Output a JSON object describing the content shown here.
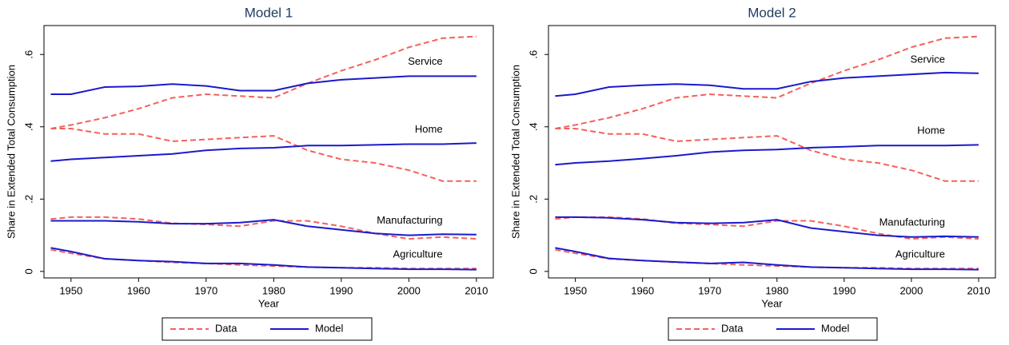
{
  "chart_data": [
    {
      "type": "line",
      "title": "Model 1",
      "xlabel": "Year",
      "ylabel": "Share in Extended Total Consumption",
      "x": [
        1947,
        1950,
        1955,
        1960,
        1965,
        1970,
        1975,
        1980,
        1985,
        1990,
        1995,
        2000,
        2005,
        2010
      ],
      "xlim": [
        1946,
        2012.5
      ],
      "xticks": [
        1950,
        1960,
        1970,
        1980,
        1990,
        2000,
        2010
      ],
      "ylim": [
        -0.018,
        0.68
      ],
      "yticks": [
        0,
        {
          "value": 0.2,
          "label": ".2"
        },
        {
          "value": 0.4,
          "label": ".4"
        },
        {
          "value": 0.6,
          "label": ".6"
        }
      ],
      "legend": [
        {
          "name": "Data",
          "color": "#f4605c",
          "dash": true
        },
        {
          "name": "Model",
          "color": "#1a1acc",
          "dash": false
        }
      ],
      "series": [
        {
          "name": "Service",
          "data": [
            0.395,
            0.405,
            0.425,
            0.45,
            0.48,
            0.49,
            0.485,
            0.48,
            0.52,
            0.555,
            0.585,
            0.62,
            0.645,
            0.65
          ],
          "model": [
            0.49,
            0.49,
            0.51,
            0.512,
            0.518,
            0.513,
            0.5,
            0.5,
            0.52,
            0.53,
            0.535,
            0.54,
            0.54,
            0.54
          ]
        },
        {
          "name": "Home",
          "data": [
            0.395,
            0.395,
            0.38,
            0.38,
            0.36,
            0.365,
            0.37,
            0.375,
            0.335,
            0.31,
            0.3,
            0.28,
            0.25,
            0.25
          ],
          "model": [
            0.305,
            0.31,
            0.315,
            0.32,
            0.325,
            0.335,
            0.34,
            0.342,
            0.348,
            0.348,
            0.35,
            0.352,
            0.352,
            0.355
          ]
        },
        {
          "name": "Manufacturing",
          "data": [
            0.145,
            0.15,
            0.15,
            0.145,
            0.133,
            0.13,
            0.125,
            0.14,
            0.14,
            0.125,
            0.105,
            0.09,
            0.095,
            0.09
          ],
          "model": [
            0.14,
            0.14,
            0.14,
            0.137,
            0.132,
            0.132,
            0.135,
            0.143,
            0.125,
            0.115,
            0.105,
            0.1,
            0.103,
            0.102
          ]
        },
        {
          "name": "Agriculture",
          "data": [
            0.06,
            0.05,
            0.035,
            0.03,
            0.025,
            0.022,
            0.018,
            0.015,
            0.012,
            0.01,
            0.01,
            0.008,
            0.008,
            0.008
          ],
          "model": [
            0.065,
            0.055,
            0.035,
            0.03,
            0.027,
            0.022,
            0.022,
            0.018,
            0.012,
            0.01,
            0.008,
            0.006,
            0.006,
            0.005
          ]
        }
      ]
    },
    {
      "type": "line",
      "title": "Model 2",
      "xlabel": "Year",
      "ylabel": "Share in Extended Total Consumption",
      "x": [
        1947,
        1950,
        1955,
        1960,
        1965,
        1970,
        1975,
        1980,
        1985,
        1990,
        1995,
        2000,
        2005,
        2010
      ],
      "xlim": [
        1946,
        2012.5
      ],
      "xticks": [
        1950,
        1960,
        1970,
        1980,
        1990,
        2000,
        2010
      ],
      "ylim": [
        -0.018,
        0.68
      ],
      "yticks": [
        0,
        {
          "value": 0.2,
          "label": ".2"
        },
        {
          "value": 0.4,
          "label": ".4"
        },
        {
          "value": 0.6,
          "label": ".6"
        }
      ],
      "legend": [
        {
          "name": "Data",
          "color": "#f4605c",
          "dash": true
        },
        {
          "name": "Model",
          "color": "#1a1acc",
          "dash": false
        }
      ],
      "series": [
        {
          "name": "Service",
          "data": [
            0.395,
            0.405,
            0.425,
            0.45,
            0.48,
            0.49,
            0.485,
            0.48,
            0.52,
            0.555,
            0.585,
            0.62,
            0.645,
            0.65
          ],
          "model": [
            0.485,
            0.49,
            0.51,
            0.515,
            0.518,
            0.515,
            0.505,
            0.505,
            0.525,
            0.535,
            0.54,
            0.545,
            0.55,
            0.548
          ]
        },
        {
          "name": "Home",
          "data": [
            0.395,
            0.395,
            0.38,
            0.38,
            0.36,
            0.365,
            0.37,
            0.375,
            0.335,
            0.31,
            0.3,
            0.28,
            0.25,
            0.25
          ],
          "model": [
            0.295,
            0.3,
            0.305,
            0.312,
            0.32,
            0.33,
            0.335,
            0.337,
            0.342,
            0.345,
            0.348,
            0.348,
            0.348,
            0.35
          ]
        },
        {
          "name": "Manufacturing",
          "data": [
            0.145,
            0.15,
            0.15,
            0.145,
            0.133,
            0.13,
            0.125,
            0.14,
            0.14,
            0.125,
            0.105,
            0.09,
            0.095,
            0.09
          ],
          "model": [
            0.15,
            0.15,
            0.148,
            0.143,
            0.135,
            0.133,
            0.135,
            0.143,
            0.12,
            0.11,
            0.1,
            0.095,
            0.097,
            0.095
          ]
        },
        {
          "name": "Agriculture",
          "data": [
            0.06,
            0.05,
            0.035,
            0.03,
            0.025,
            0.022,
            0.018,
            0.015,
            0.012,
            0.01,
            0.01,
            0.008,
            0.008,
            0.008
          ],
          "model": [
            0.065,
            0.055,
            0.036,
            0.03,
            0.026,
            0.022,
            0.025,
            0.018,
            0.012,
            0.01,
            0.008,
            0.006,
            0.006,
            0.005
          ]
        }
      ]
    }
  ]
}
